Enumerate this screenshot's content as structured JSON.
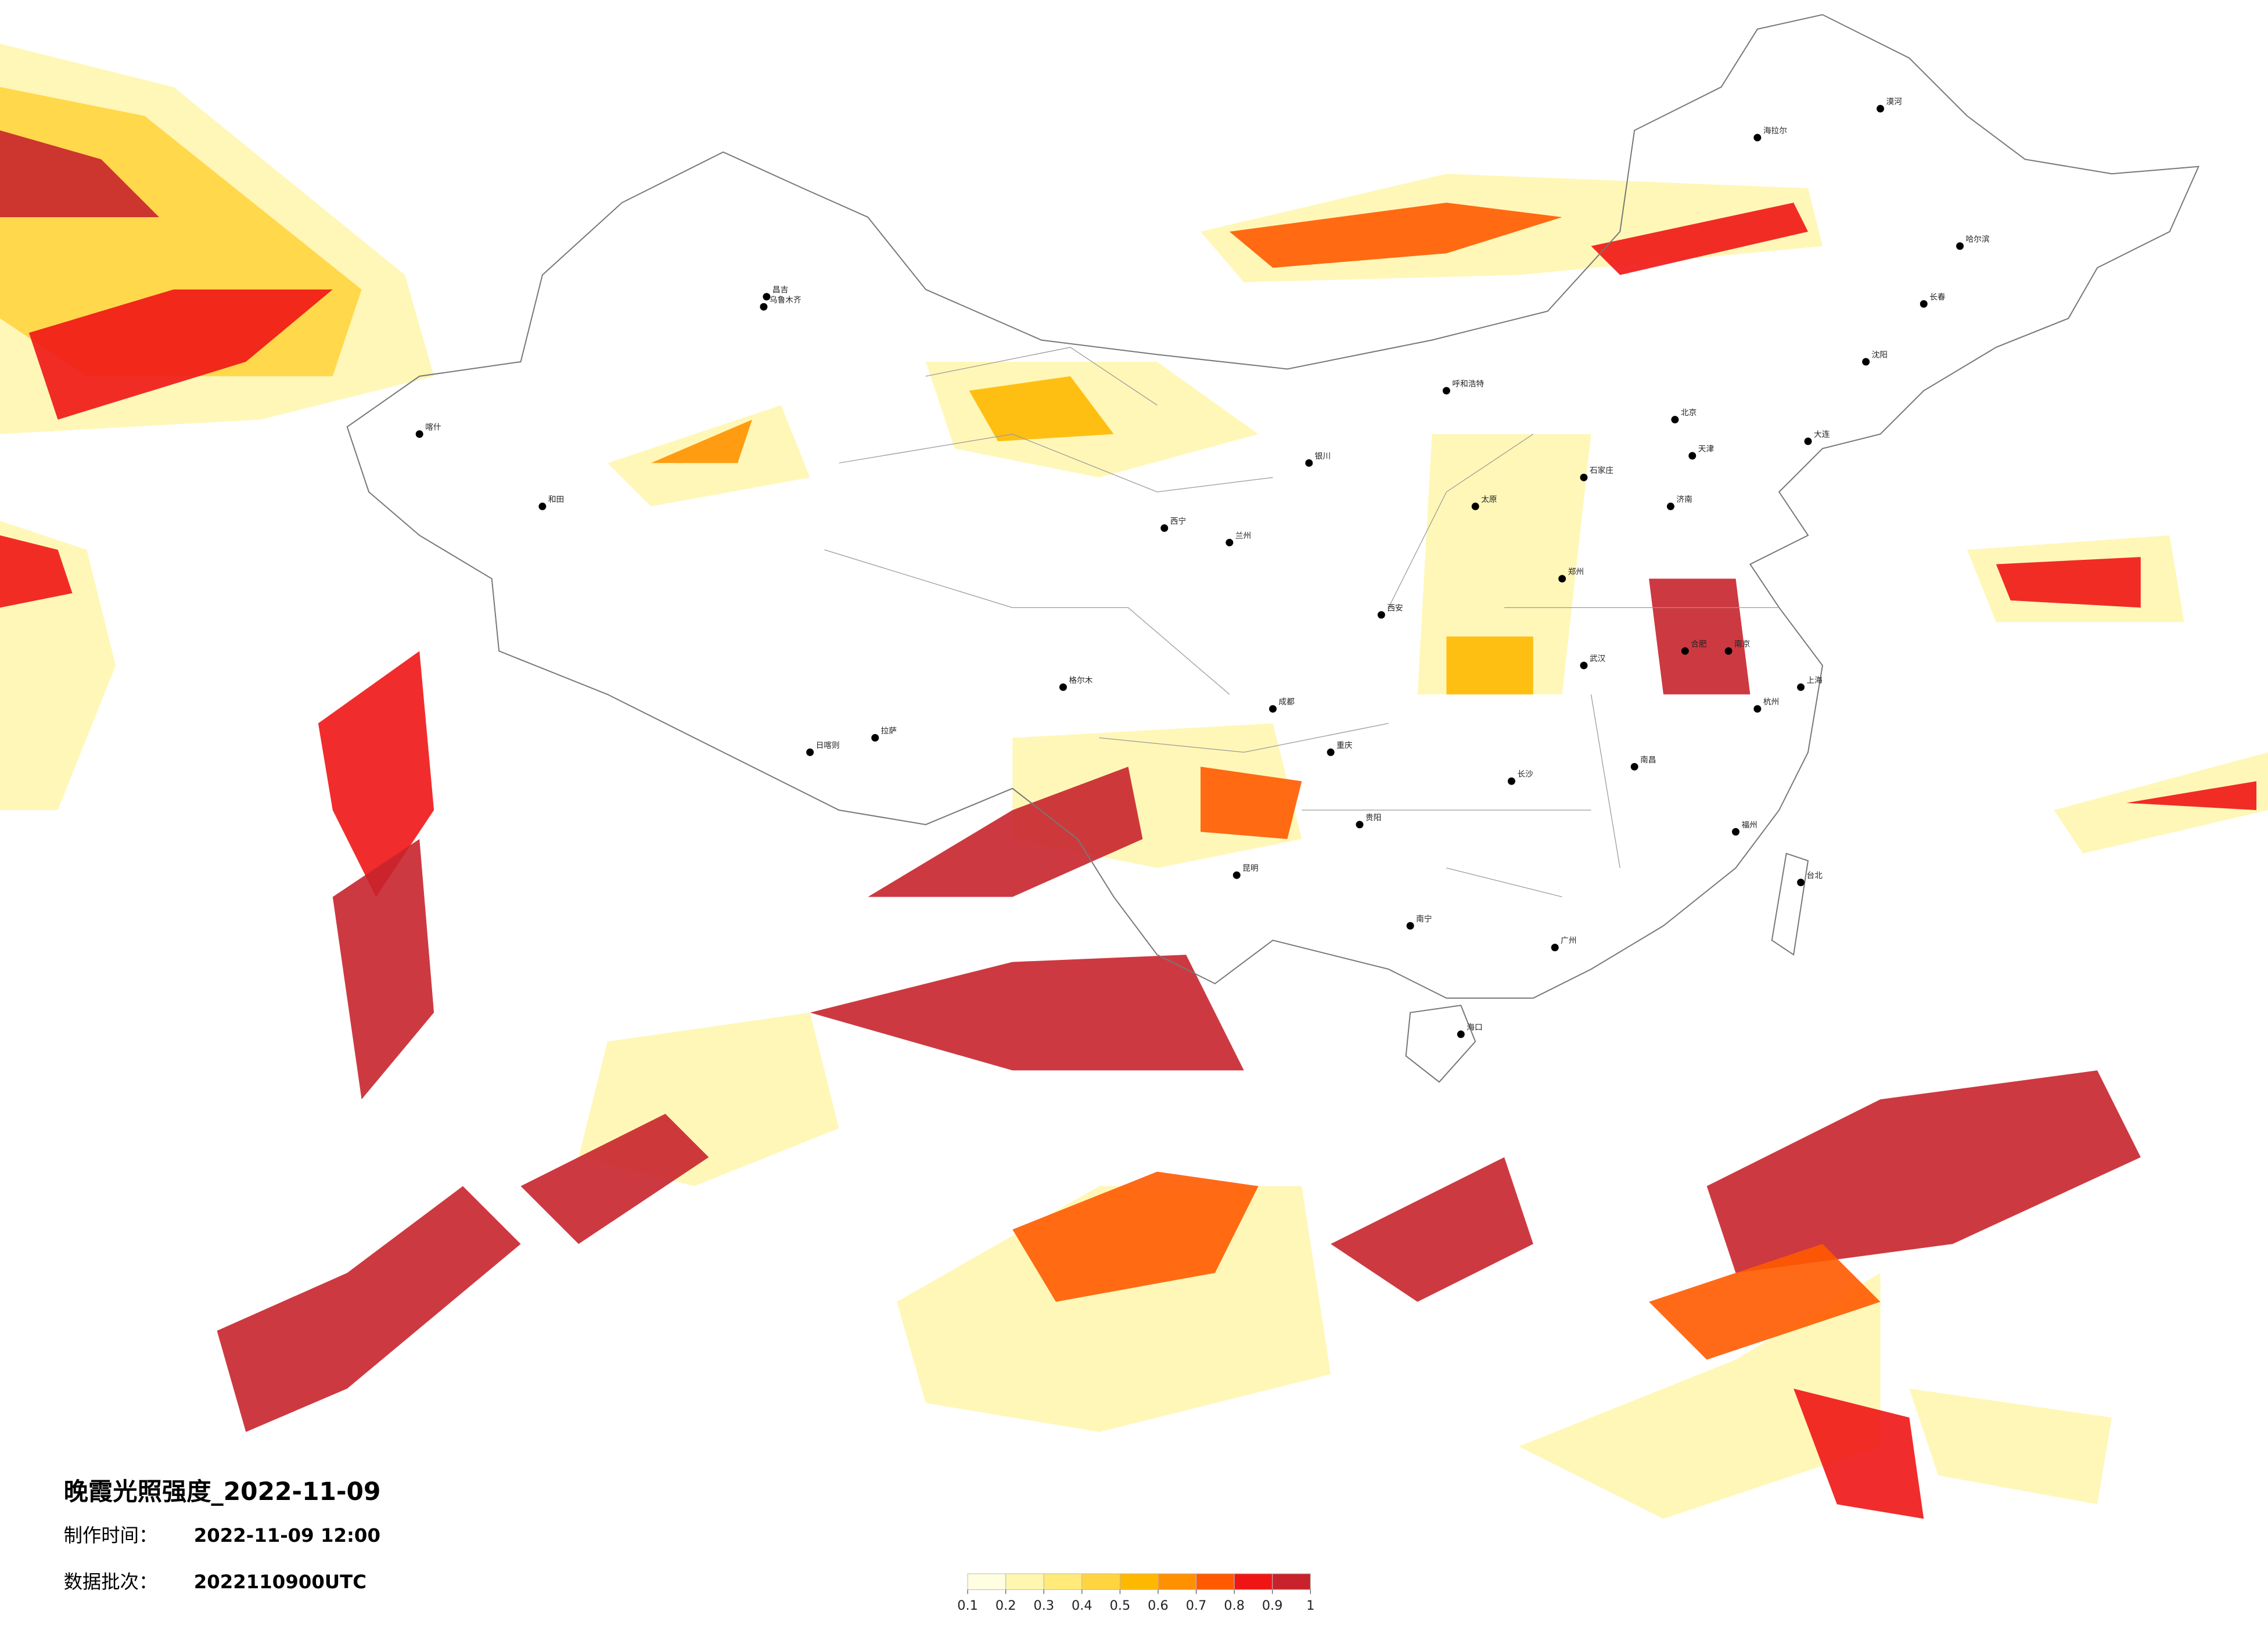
{
  "title": "晚霞光照强度_2022-11-09",
  "info": {
    "made_label": "制作时间：",
    "made_value": "2022-11-09 12:00",
    "batch_label": "数据批次：",
    "batch_value": "2022110900UTC"
  },
  "legend": {
    "ticks": [
      0.1,
      0.2,
      0.3,
      0.4,
      0.5,
      0.6,
      0.7,
      0.8,
      0.9,
      1
    ],
    "colors": [
      "#fffde2",
      "#fff6b0",
      "#ffea7a",
      "#ffd440",
      "#ffb800",
      "#ff9100",
      "#ff5a00",
      "#f01515",
      "#c8232c"
    ]
  },
  "cities": [
    "北京",
    "天津",
    "上海",
    "广州",
    "长沙",
    "武汉",
    "郑州",
    "西安",
    "成都",
    "重庆",
    "昆明",
    "贵阳",
    "南宁",
    "海口",
    "拉萨",
    "乌鲁木齐",
    "兰州",
    "西宁",
    "银川",
    "呼和浩特",
    "哈尔滨",
    "长春",
    "沈阳",
    "济南",
    "南京",
    "杭州",
    "福州",
    "南昌",
    "合肥",
    "台北",
    "喀什",
    "和田",
    "日喀则",
    "格尔木",
    "海拉尔",
    "漠河",
    "太原",
    "石家庄",
    "大连",
    "昌吉"
  ]
}
